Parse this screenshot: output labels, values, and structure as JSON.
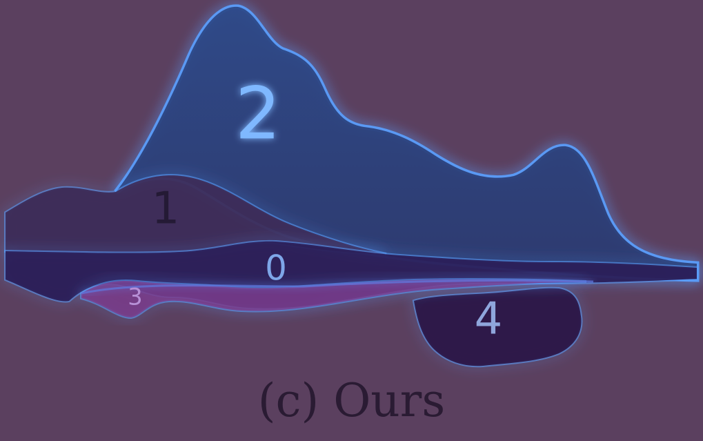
{
  "chart_data": {
    "type": "area",
    "layers": [
      {
        "label": "0",
        "color": "#2b1f58",
        "label_color": "#7ea6e8",
        "font_size": 50
      },
      {
        "label": "1",
        "color": "#3d2c58",
        "label_color": "#241a35",
        "font_size": 64
      },
      {
        "label": "2",
        "color": "#2f3f74",
        "label_color": "#7fb8ff",
        "font_size": 104
      },
      {
        "label": "3",
        "color": "#7a3c8c",
        "label_color": "#b790d6",
        "font_size": 34
      },
      {
        "label": "4",
        "color": "#2c1748",
        "label_color": "#8fa6dc",
        "font_size": 64
      }
    ],
    "glow_color": "#5aa0ff"
  },
  "caption": "(c) Ours"
}
